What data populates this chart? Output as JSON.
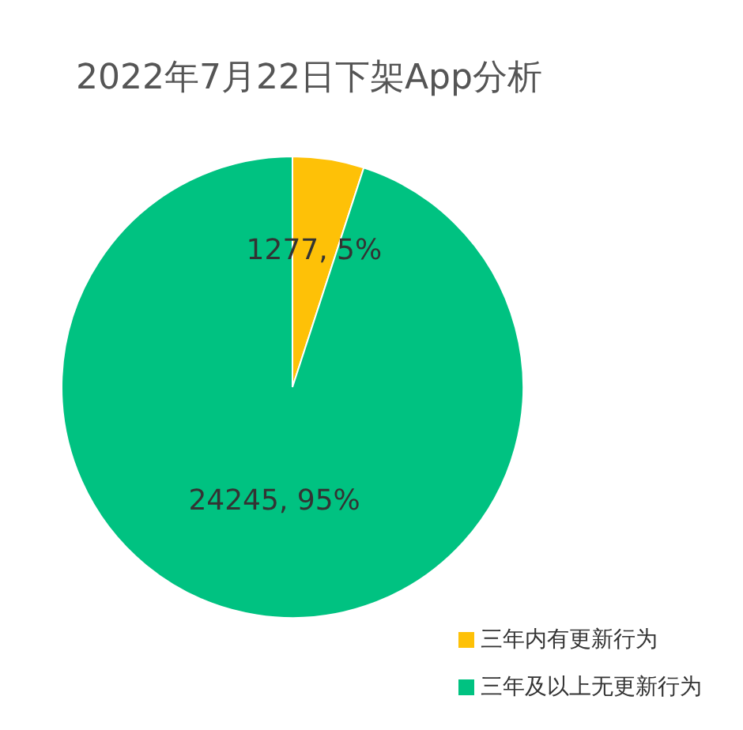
{
  "chart_data": {
    "type": "pie",
    "title": "2022年7月22日下架App分析",
    "categories": [
      "三年内有更新行为",
      "三年及以上无更新行为"
    ],
    "values": [
      1277,
      24245
    ],
    "colors": [
      "#fec107",
      "#00c281"
    ],
    "value_labels": [
      "1277, 5%",
      "24245, 95%"
    ],
    "legend": "bottom right"
  }
}
